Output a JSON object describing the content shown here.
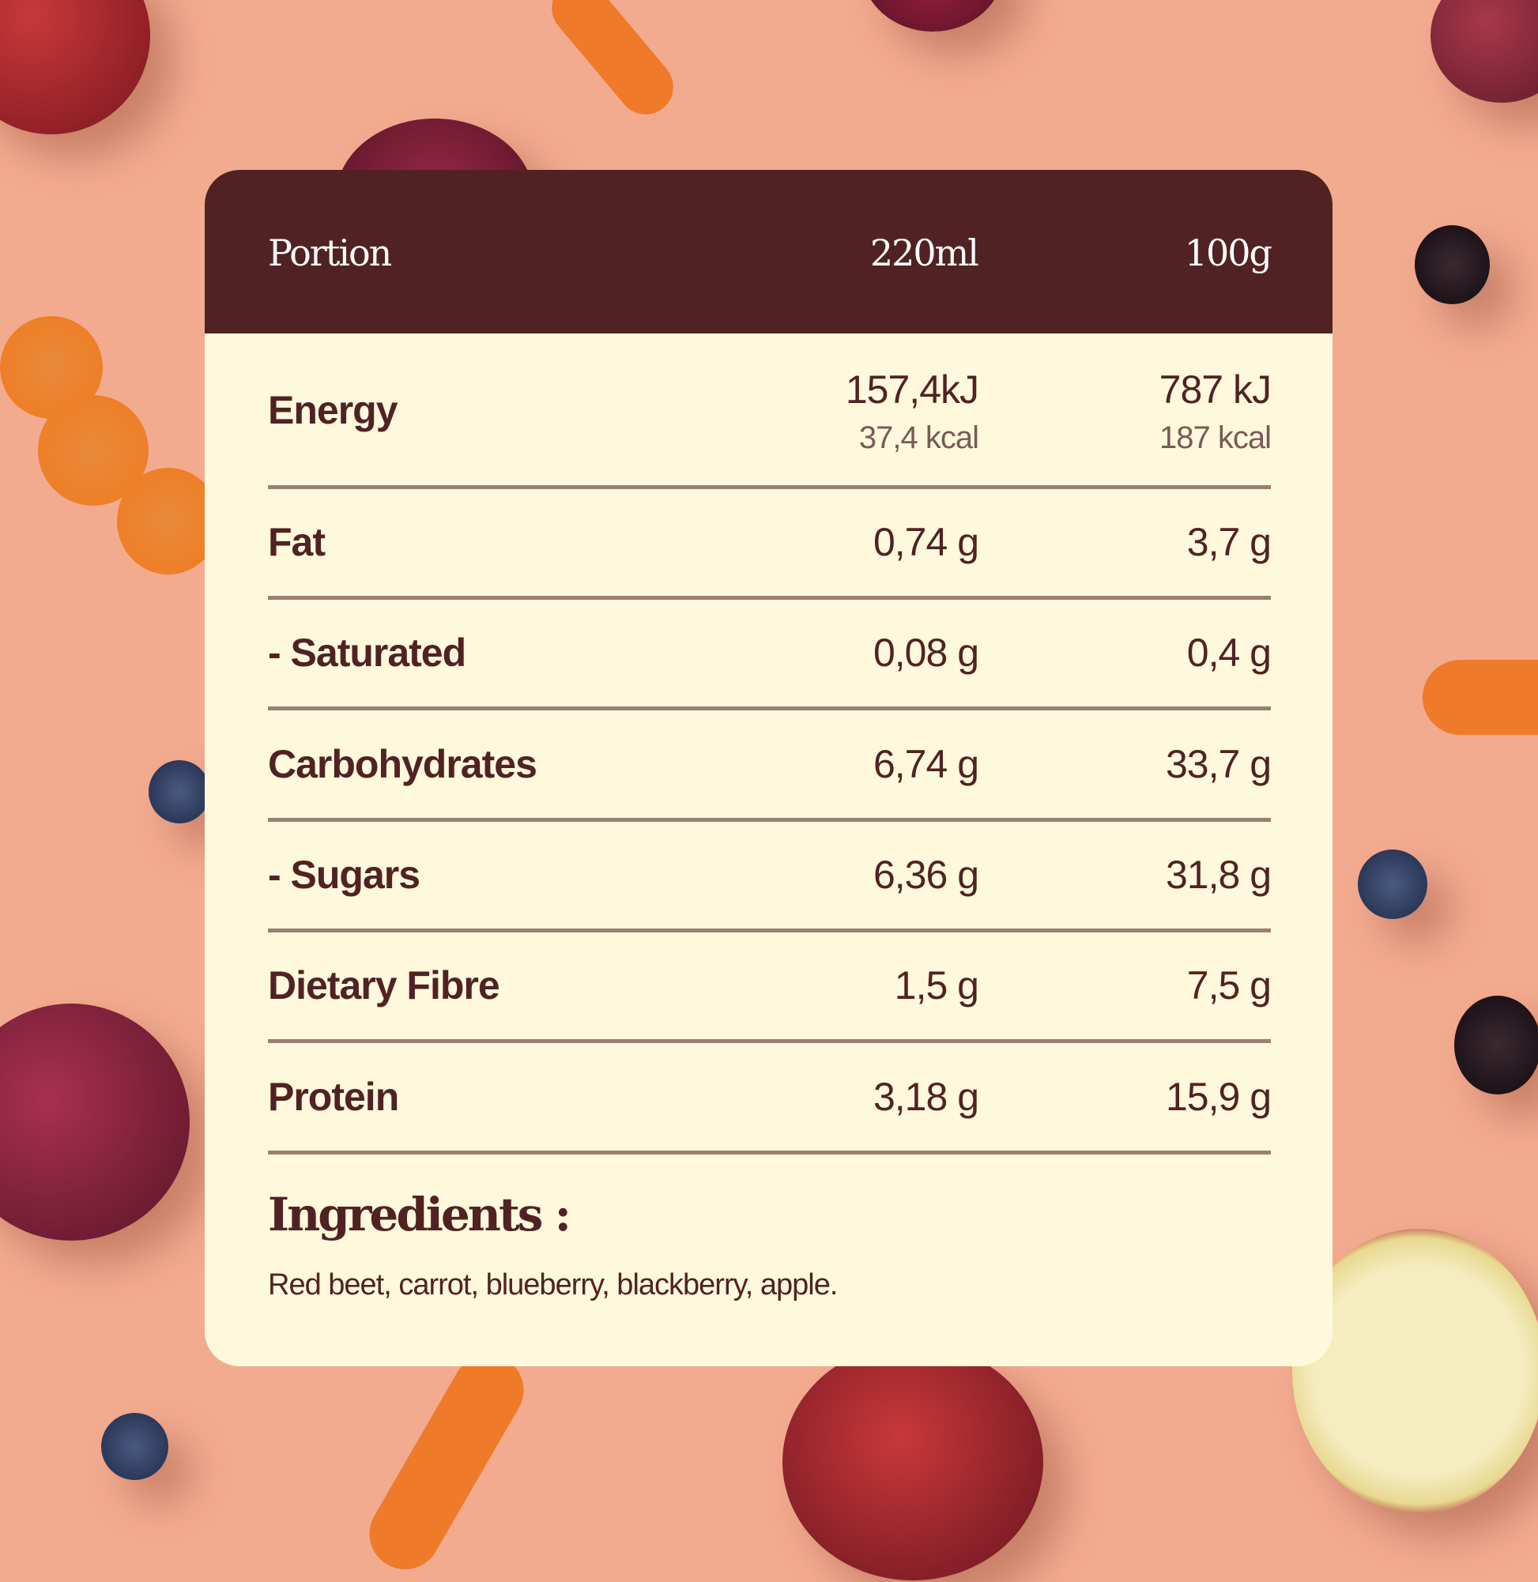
{
  "colors": {
    "background": "#f3ab90",
    "header": "#512223",
    "card": "#fef8dc",
    "text": "#512223",
    "divider": "#9a7f72"
  },
  "header": {
    "label": "Portion",
    "col1": "220ml",
    "col2": "100g"
  },
  "energy": {
    "label": "Energy",
    "col1_kj": "157,4kJ",
    "col1_kcal": "37,4 kcal",
    "col2_kj": "787 kJ",
    "col2_kcal": "187 kcal"
  },
  "rows": [
    {
      "label": "Fat",
      "col1": "0,74 g",
      "col2": "3,7 g"
    },
    {
      "label": "- Saturated",
      "col1": "0,08 g",
      "col2": "0,4 g"
    },
    {
      "label": "Carbohydrates",
      "col1": "6,74 g",
      "col2": "33,7 g"
    },
    {
      "label": "- Sugars",
      "col1": "6,36 g",
      "col2": "31,8 g"
    },
    {
      "label": "Dietary Fibre",
      "col1": "1,5 g",
      "col2": "7,5 g"
    },
    {
      "label": "Protein",
      "col1": "3,18 g",
      "col2": "15,9 g"
    }
  ],
  "ingredients": {
    "title": "Ingredients :",
    "text": "Red beet, carrot, blueberry, blackberry, apple."
  }
}
